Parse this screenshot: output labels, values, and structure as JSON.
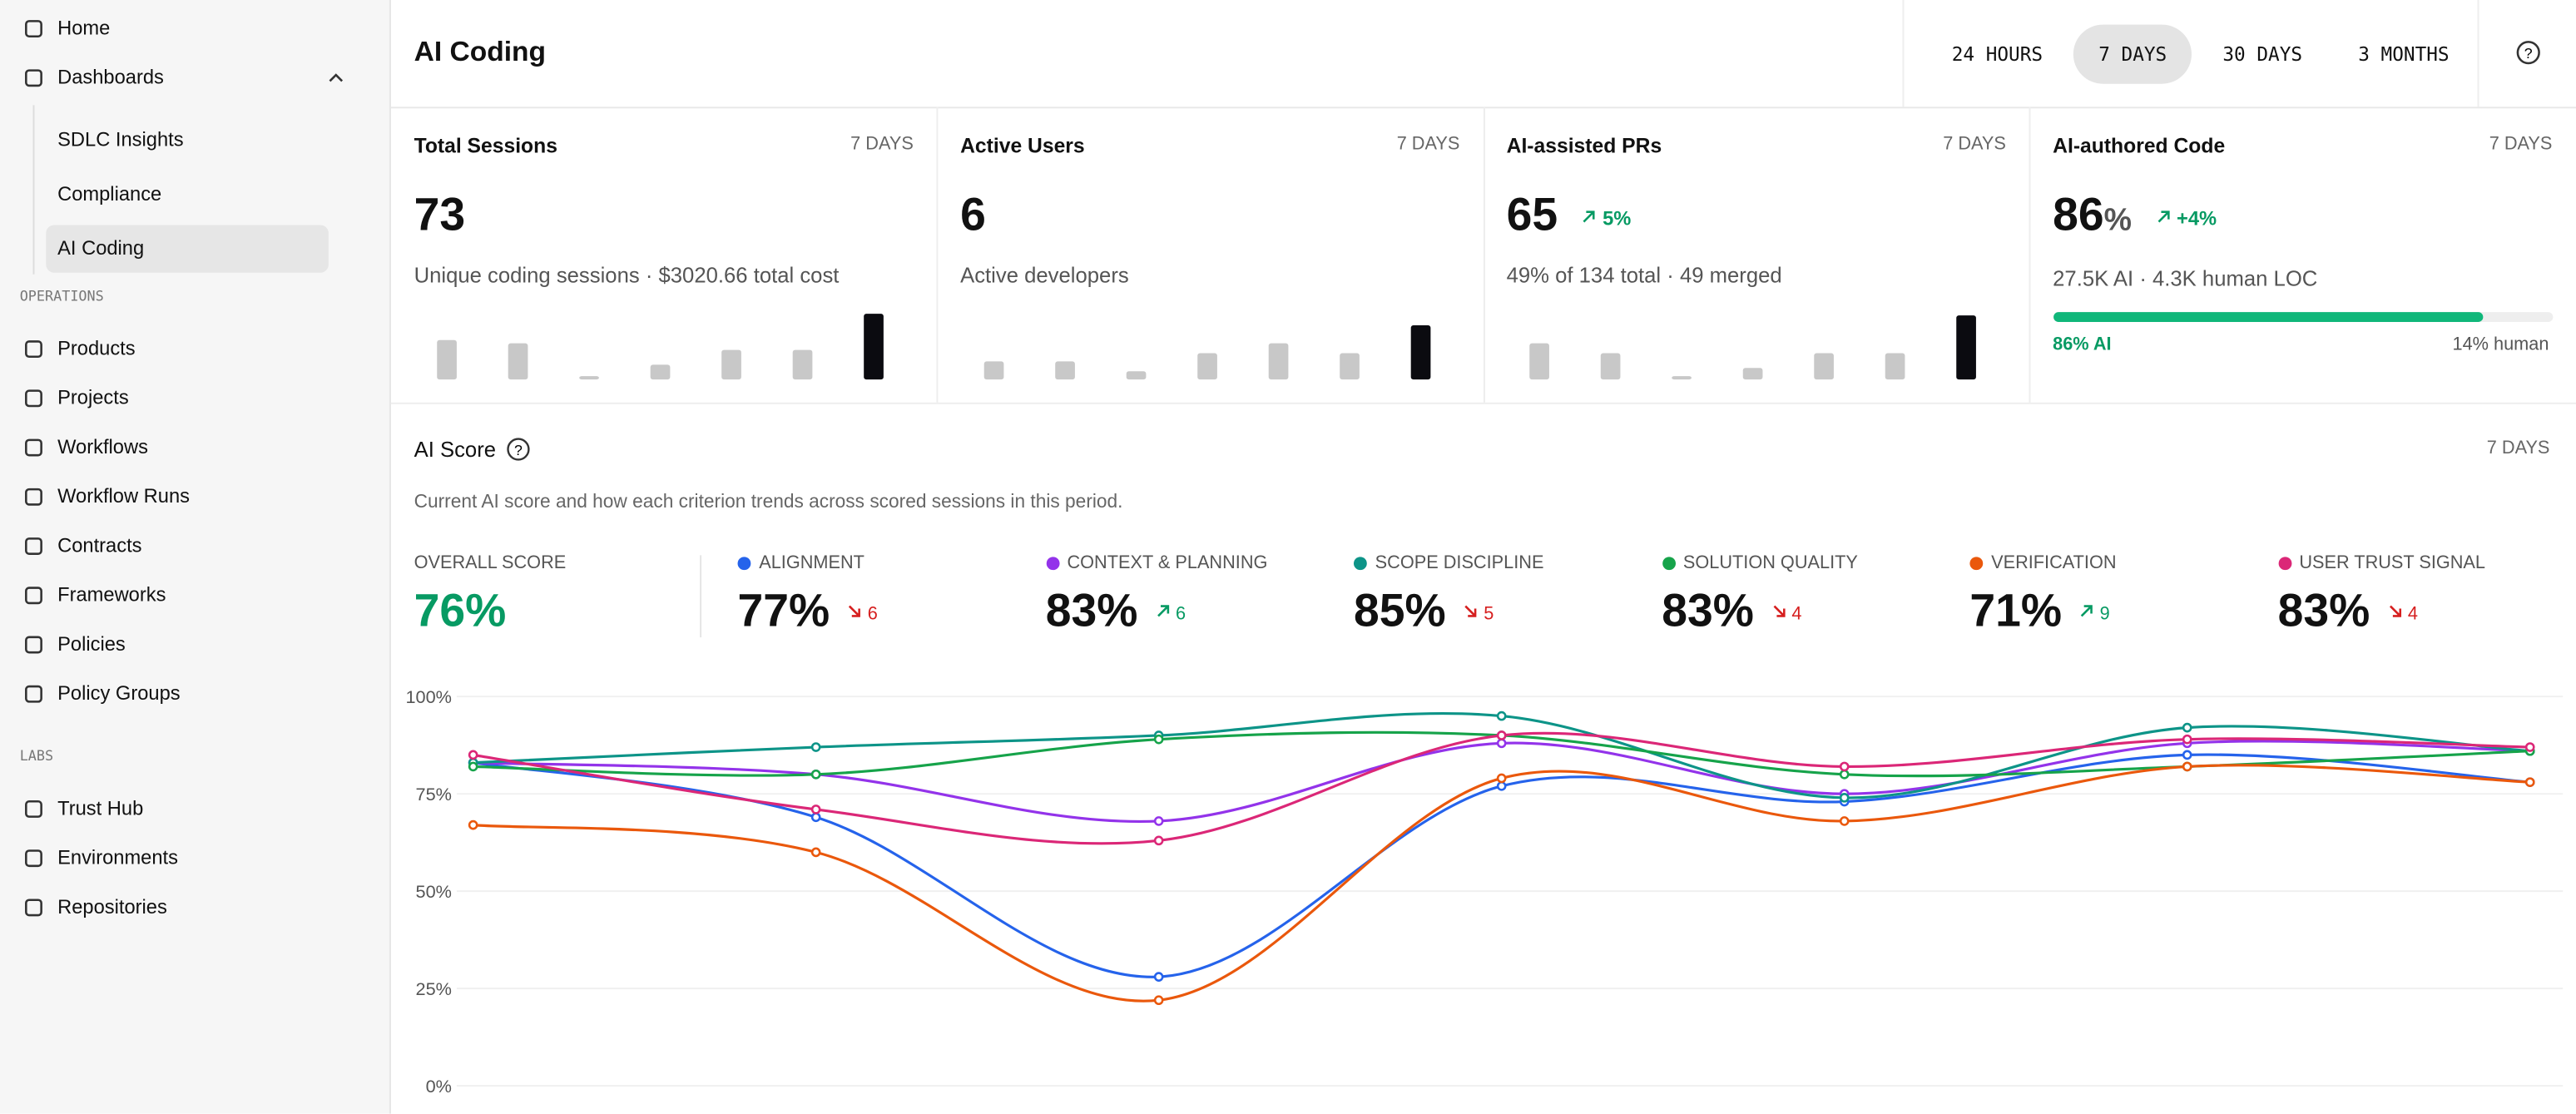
{
  "sidebar": {
    "items": [
      {
        "label": "Home"
      },
      {
        "label": "Dashboards",
        "children": [
          "SDLC Insights",
          "Compliance",
          "AI Coding"
        ],
        "active_child": 2
      }
    ],
    "sections": [
      {
        "title": "OPERATIONS",
        "items": [
          "Products",
          "Projects",
          "Workflows",
          "Workflow Runs",
          "Contracts",
          "Frameworks",
          "Policies",
          "Policy Groups"
        ]
      },
      {
        "title": "LABS",
        "items": [
          "Trust Hub",
          "Environments",
          "Repositories"
        ]
      }
    ]
  },
  "header": {
    "title": "AI Coding",
    "tabs": [
      "24 HOURS",
      "7 DAYS",
      "30 DAYS",
      "3 MONTHS"
    ],
    "active_tab": 1
  },
  "cards": [
    {
      "title": "Total Sessions",
      "period": "7 DAYS",
      "value": "73",
      "subtitle": "Unique coding sessions · $3020.66 total cost",
      "bars": [
        24,
        22,
        2,
        9,
        18,
        18,
        40
      ]
    },
    {
      "title": "Active Users",
      "period": "7 DAYS",
      "value": "6",
      "subtitle": "Active developers",
      "bars": [
        11,
        11,
        5,
        16,
        22,
        16,
        33
      ]
    },
    {
      "title": "AI-assisted PRs",
      "period": "7 DAYS",
      "value": "65",
      "delta": "5%",
      "subtitle": "49% of 134 total · 49 merged",
      "bars": [
        22,
        16,
        2,
        7,
        16,
        16,
        39
      ]
    },
    {
      "title": "AI-authored Code",
      "period": "7 DAYS",
      "value": "86",
      "unit": "%",
      "delta": "+4%",
      "subtitle": "27.5K AI · 4.3K human LOC",
      "progress": 86,
      "progress_left": "86% AI",
      "progress_right": "14% human"
    }
  ],
  "score": {
    "title": "AI Score",
    "period": "7 DAYS",
    "description": "Current AI score and how each criterion trends across scored sessions in this period.",
    "overall_label": "OVERALL SCORE",
    "overall": "76%",
    "metrics": [
      {
        "name": "ALIGNMENT",
        "score": "77%",
        "delta": "6",
        "trend": "down"
      },
      {
        "name": "CONTEXT & PLANNING",
        "score": "83%",
        "delta": "6",
        "trend": "up"
      },
      {
        "name": "SCOPE DISCIPLINE",
        "score": "85%",
        "delta": "5",
        "trend": "down"
      },
      {
        "name": "SOLUTION QUALITY",
        "score": "83%",
        "delta": "4",
        "trend": "down"
      },
      {
        "name": "VERIFICATION",
        "score": "71%",
        "delta": "9",
        "trend": "up"
      },
      {
        "name": "USER TRUST SIGNAL",
        "score": "83%",
        "delta": "4",
        "trend": "down"
      }
    ]
  },
  "chart_data": {
    "type": "line",
    "ylim": [
      0,
      100
    ],
    "yticks": [
      {
        "value": 0,
        "label": "0%"
      },
      {
        "value": 25,
        "label": "25%"
      },
      {
        "value": 50,
        "label": "50%"
      },
      {
        "value": 75,
        "label": "75%"
      },
      {
        "value": 100,
        "label": "100%"
      }
    ],
    "grid": true,
    "series": [
      {
        "color": "#2563eb",
        "values": [
          83,
          69,
          28,
          77,
          73,
          85,
          78
        ]
      },
      {
        "color": "#9333ea",
        "values": [
          83,
          80,
          68,
          88,
          75,
          88,
          86
        ]
      },
      {
        "color": "#0d9488",
        "values": [
          83,
          87,
          90,
          95,
          74,
          92,
          86
        ]
      },
      {
        "color": "#16a34a",
        "values": [
          82,
          80,
          89,
          90,
          80,
          82,
          86
        ]
      },
      {
        "color": "#ea580c",
        "values": [
          67,
          60,
          22,
          79,
          68,
          82,
          78
        ]
      },
      {
        "color": "#db2777",
        "values": [
          85,
          71,
          63,
          90,
          82,
          89,
          87
        ]
      }
    ]
  }
}
